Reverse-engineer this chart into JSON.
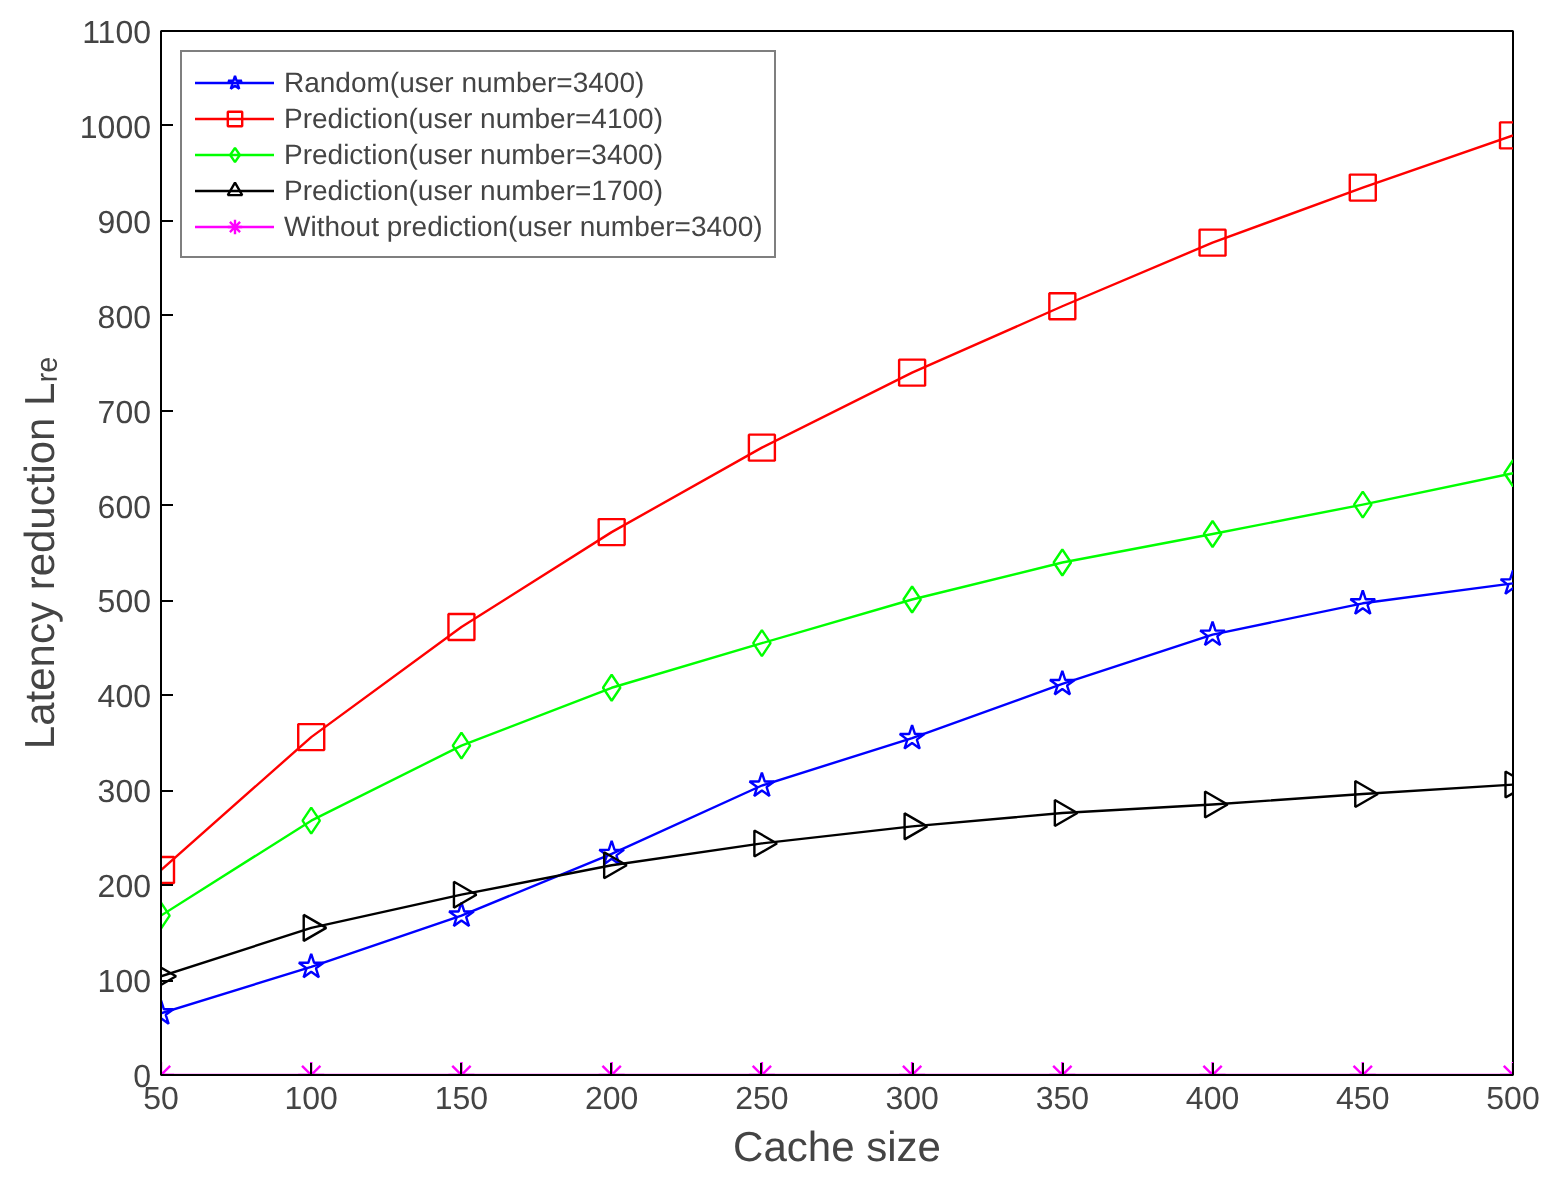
{
  "chart_data": {
    "type": "line",
    "xlabel": "Cache size",
    "ylabel": "Latency reduction Lᵣₑ",
    "x": [
      50,
      100,
      150,
      200,
      250,
      300,
      350,
      400,
      450,
      500
    ],
    "xlim": [
      50,
      500
    ],
    "xticks": [
      50,
      100,
      150,
      200,
      250,
      300,
      350,
      400,
      450,
      500
    ],
    "ylim": [
      0,
      1100
    ],
    "yticks": [
      0,
      100,
      200,
      300,
      400,
      500,
      600,
      700,
      800,
      900,
      1000,
      1100
    ],
    "grid": false,
    "legend": "top left",
    "line_style": "solid",
    "series": [
      {
        "name": "Random(user number=3400)",
        "color": "#0000ff",
        "marker": "star",
        "values": [
          65,
          114,
          168,
          233,
          305,
          355,
          412,
          464,
          497,
          518
        ]
      },
      {
        "name": "Prediction(user number=4100)",
        "color": "#ff0000",
        "marker": "square",
        "values": [
          216,
          356,
          472,
          572,
          661,
          740,
          810,
          877,
          935,
          990
        ]
      },
      {
        "name": "Prediction(user number=3400)",
        "color": "#00ff00",
        "marker": "diamond",
        "values": [
          168,
          268,
          347,
          408,
          455,
          501,
          540,
          570,
          601,
          634
        ]
      },
      {
        "name": "Prediction(user number=1700)",
        "color": "#000000",
        "marker": "triangle",
        "values": [
          104,
          155,
          190,
          221,
          244,
          262,
          276,
          285,
          296,
          306
        ]
      },
      {
        "name": "Without prediction(user number=3400)",
        "color": "#ff00ff",
        "marker": "cross",
        "values": [
          0,
          0,
          0,
          0,
          0,
          0,
          0,
          0,
          0,
          0
        ]
      }
    ]
  }
}
